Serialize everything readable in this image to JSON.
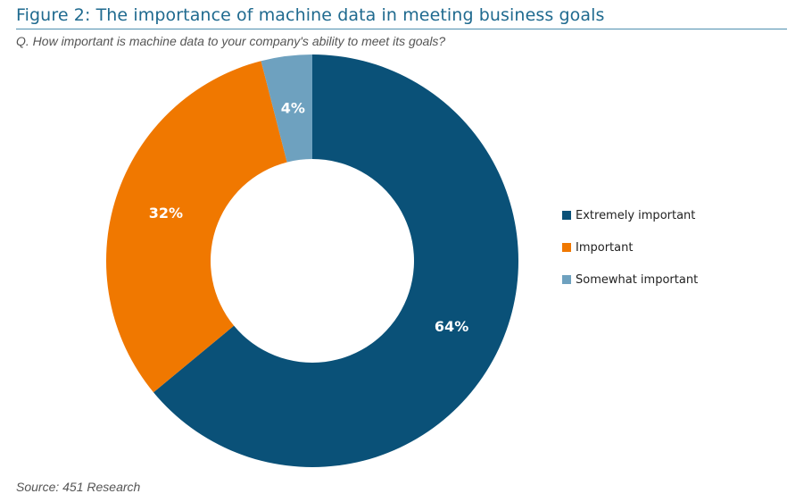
{
  "title": "Figure 2: The importance of machine data in meeting business goals",
  "subtitle": "Q. How important is machine data to your company's ability to meet its goals?",
  "source": "Source: 451 Research",
  "chart_data": {
    "type": "pie",
    "donut": true,
    "categories": [
      "Extremely important",
      "Important",
      "Somewhat important"
    ],
    "values": [
      64,
      32,
      4
    ],
    "value_labels": [
      "64%",
      "32%",
      "4%"
    ],
    "unit": "%",
    "colors": [
      "#0a5178",
      "#f07800",
      "#6ea1bf"
    ],
    "legend_position": "right"
  }
}
